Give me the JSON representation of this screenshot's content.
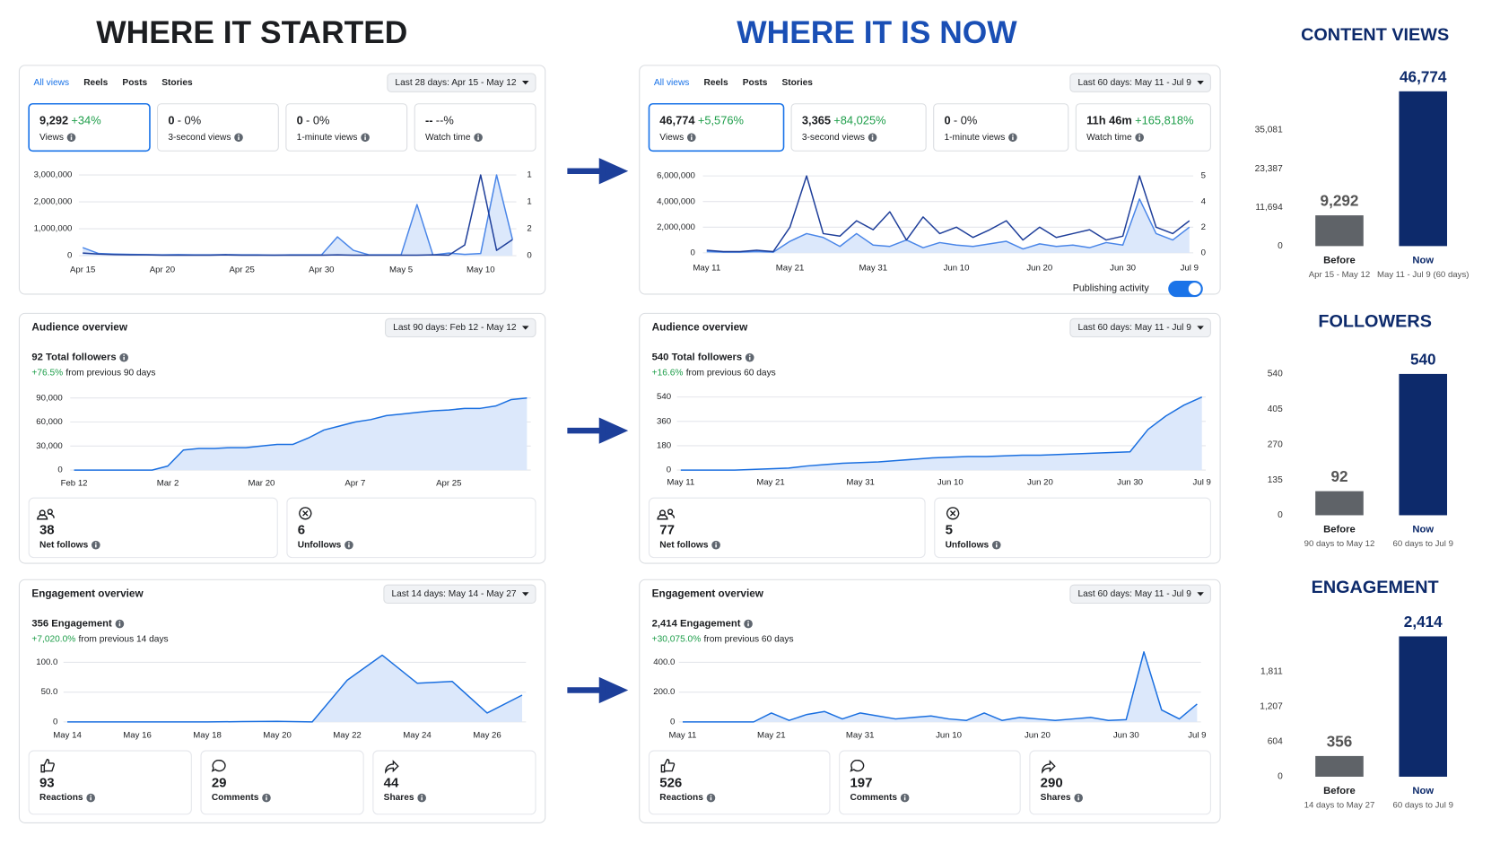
{
  "titles": {
    "before": "WHERE IT STARTED",
    "now": "WHERE IT IS NOW"
  },
  "dashboards": [
    {
      "views": {
        "tabs": [
          "All views",
          "Reels",
          "Posts",
          "Stories"
        ],
        "range": "Last 28 days: Apr 15 - May 12",
        "metrics": [
          {
            "value": "9,292",
            "change": "+34%",
            "change_color": "#1e9e4a",
            "label": "Views"
          },
          {
            "value": "0",
            "change": "- 0%",
            "change_color": "#1c1e21",
            "label": "3-second views"
          },
          {
            "value": "0",
            "change": "- 0%",
            "change_color": "#1c1e21",
            "label": "1-minute views"
          },
          {
            "value": "--",
            "change": "--%",
            "change_color": "#1c1e21",
            "label": "Watch time"
          }
        ],
        "chart": {
          "type": "line",
          "categories": [
            "Apr 15",
            null,
            null,
            null,
            null,
            "Apr 20",
            null,
            null,
            null,
            null,
            "Apr 25",
            null,
            null,
            null,
            null,
            "Apr 30",
            null,
            null,
            null,
            null,
            "May 5",
            null,
            null,
            null,
            null,
            "May 10",
            null,
            null
          ],
          "ylim": [
            0,
            3000000
          ],
          "yticks": [
            0,
            {
              "value": 1000000,
              "label": "1,000,000"
            },
            {
              "value": 2000000,
              "label": "2,000,000"
            },
            {
              "value": 3000000,
              "label": "3,000,000"
            }
          ],
          "right_axis_labels": [
            "0",
            "2",
            "1",
            "1"
          ],
          "series": [
            {
              "color": "#4a86e8",
              "area": "#dce8fb",
              "values": [
                300000,
                80000,
                60000,
                50000,
                40000,
                30000,
                40000,
                30000,
                30000,
                40000,
                30000,
                30000,
                20000,
                30000,
                30000,
                30000,
                700000,
                200000,
                30000,
                30000,
                30000,
                1900000,
                30000,
                100000,
                50000,
                80000,
                3000000,
                600000
              ]
            },
            {
              "color": "#1f3f9a",
              "values": [
                100000,
                60000,
                40000,
                30000,
                30000,
                20000,
                20000,
                20000,
                20000,
                30000,
                20000,
                20000,
                20000,
                20000,
                20000,
                20000,
                30000,
                20000,
                20000,
                20000,
                20000,
                20000,
                30000,
                20000,
                400000,
                3000000,
                200000,
                600000
              ]
            }
          ]
        }
      },
      "audience": {
        "title": "Audience overview",
        "range": "Last 90 days: Feb 12 - May 12",
        "total": "92 Total followers",
        "change": "+76.5%",
        "change_text": "from previous 90 days",
        "chart": {
          "type": "line",
          "categories": [
            "Feb 12",
            null,
            null,
            null,
            null,
            null,
            "Mar 2",
            null,
            null,
            null,
            null,
            null,
            "Mar 20",
            null,
            null,
            null,
            null,
            null,
            "Apr 7",
            null,
            null,
            null,
            null,
            null,
            "Apr 25",
            null,
            null,
            null,
            null,
            null
          ],
          "ylim": [
            0,
            90000
          ],
          "yticks": [
            0,
            {
              "value": 30000,
              "label": "30,000"
            },
            {
              "value": 60000,
              "label": "60,000"
            },
            {
              "value": 90000,
              "label": "90,000"
            }
          ],
          "series": [
            {
              "color": "#1a6fe0",
              "area": "#dce8fb",
              "values": [
                0,
                0,
                0,
                0,
                0,
                0,
                5000,
                25000,
                27000,
                27000,
                28000,
                28000,
                30000,
                32000,
                32000,
                40000,
                50000,
                55000,
                60000,
                63000,
                68000,
                70000,
                72000,
                74000,
                75000,
                77000,
                77000,
                80000,
                88000,
                90000
              ]
            }
          ]
        },
        "cards": [
          {
            "value": 38,
            "label": "Net follows"
          },
          {
            "value": 6,
            "label": "Unfollows"
          }
        ]
      },
      "engagement": {
        "title": "Engagement overview",
        "range": "Last 14 days: May 14 - May 27",
        "total": "356 Engagement",
        "change": "+7,020.0%",
        "change_text": "from previous 14 days",
        "chart": {
          "type": "line",
          "categories": [
            "May 14",
            null,
            "May 16",
            null,
            "May 18",
            null,
            "May 20",
            null,
            "May 22",
            null,
            "May 24",
            null,
            "May 26",
            null
          ],
          "ylim": [
            0,
            115
          ],
          "yticks": [
            0,
            {
              "value": 50,
              "label": "50.0"
            },
            {
              "value": 100,
              "label": "100.0"
            }
          ],
          "series": [
            {
              "color": "#1a6fe0",
              "area": "#dce8fb",
              "values": [
                0,
                0,
                0,
                0,
                0,
                0.5,
                1,
                0,
                70,
                112,
                65,
                68,
                15,
                45
              ]
            }
          ]
        },
        "cards": [
          {
            "value": 93,
            "label": "Reactions"
          },
          {
            "value": 29,
            "label": "Comments"
          },
          {
            "value": 44,
            "label": "Shares"
          }
        ]
      }
    },
    {
      "views": {
        "tabs": [
          "All views",
          "Reels",
          "Posts",
          "Stories"
        ],
        "range": "Last 60 days: May 11 - Jul 9",
        "metrics": [
          {
            "value": "46,774",
            "change": "+5,576%",
            "change_color": "#1e9e4a",
            "label": "Views"
          },
          {
            "value": "3,365",
            "change": "+84,025%",
            "change_color": "#1e9e4a",
            "label": "3-second views"
          },
          {
            "value": "0",
            "change": "- 0%",
            "change_color": "#1c1e21",
            "label": "1-minute views"
          },
          {
            "value": "11h 46m",
            "change": "+165,818%",
            "change_color": "#1e9e4a",
            "label": "Watch time"
          }
        ],
        "chart": {
          "type": "line",
          "categories": [
            "May 11",
            null,
            null,
            null,
            null,
            "May 21",
            null,
            null,
            null,
            null,
            "May 31",
            null,
            null,
            null,
            null,
            "Jun 10",
            null,
            null,
            null,
            null,
            "Jun 20",
            null,
            null,
            null,
            null,
            "Jun 30",
            null,
            null,
            null,
            "Jul 9"
          ],
          "ylim": [
            0,
            6000000
          ],
          "yticks": [
            0,
            {
              "value": 2000000,
              "label": "2,000,000"
            },
            {
              "value": 4000000,
              "label": "4,000,000"
            },
            {
              "value": 6000000,
              "label": "6,000,000"
            }
          ],
          "right_axis_labels": [
            "0",
            "2",
            "4",
            "5"
          ],
          "series": [
            {
              "color": "#4a86e8",
              "area": "#dce8fb",
              "values": [
                100000,
                50000,
                50000,
                100000,
                50000,
                900000,
                1500000,
                1200000,
                500000,
                1500000,
                600000,
                500000,
                1000000,
                400000,
                800000,
                600000,
                500000,
                700000,
                900000,
                300000,
                700000,
                500000,
                600000,
                400000,
                800000,
                600000,
                4200000,
                1500000,
                1000000,
                2000000
              ]
            },
            {
              "color": "#1f3f9a",
              "values": [
                200000,
                100000,
                100000,
                200000,
                100000,
                2000000,
                6000000,
                1500000,
                1300000,
                2500000,
                1800000,
                3200000,
                1000000,
                2800000,
                1500000,
                2000000,
                1200000,
                1800000,
                2500000,
                1000000,
                2000000,
                1200000,
                1500000,
                1800000,
                1000000,
                1300000,
                6000000,
                2000000,
                1500000,
                2500000
              ]
            }
          ]
        },
        "publishing": "Publishing activity",
        "toggle": true
      },
      "audience": {
        "title": "Audience overview",
        "range": "Last 60 days: May 11 - Jul 9",
        "total": "540 Total followers",
        "change": "+16.6%",
        "change_text": "from previous 60 days",
        "chart": {
          "type": "line",
          "categories": [
            "May 11",
            null,
            null,
            null,
            null,
            "May 21",
            null,
            null,
            null,
            null,
            "May 31",
            null,
            null,
            null,
            null,
            "Jun 10",
            null,
            null,
            null,
            null,
            "Jun 20",
            null,
            null,
            null,
            null,
            "Jun 30",
            null,
            null,
            null,
            "Jul 9"
          ],
          "ylim": [
            0,
            540
          ],
          "yticks": [
            0,
            180,
            360,
            540
          ],
          "series": [
            {
              "color": "#1a6fe0",
              "area": "#dce8fb",
              "values": [
                0,
                0,
                0,
                0,
                5,
                10,
                15,
                30,
                40,
                50,
                55,
                60,
                70,
                80,
                90,
                95,
                100,
                100,
                105,
                110,
                110,
                115,
                120,
                125,
                130,
                135,
                300,
                400,
                480,
                540
              ]
            }
          ]
        },
        "cards": [
          {
            "value": 77,
            "label": "Net follows"
          },
          {
            "value": 5,
            "label": "Unfollows"
          }
        ]
      },
      "engagement": {
        "title": "Engagement overview",
        "range": "Last 60 days: May 11 - Jul 9",
        "total": "2,414 Engagement",
        "change": "+30,075.0%",
        "change_text": "from previous 60 days",
        "chart": {
          "type": "line",
          "categories": [
            "May 11",
            null,
            null,
            null,
            null,
            "May 21",
            null,
            null,
            null,
            null,
            "May 31",
            null,
            null,
            null,
            null,
            "Jun 10",
            null,
            null,
            null,
            null,
            "Jun 20",
            null,
            null,
            null,
            null,
            "Jun 30",
            null,
            null,
            null,
            "Jul 9"
          ],
          "ylim": [
            0,
            480
          ],
          "yticks": [
            0,
            {
              "value": 200,
              "label": "200.0"
            },
            {
              "value": 400,
              "label": "400.0"
            }
          ],
          "series": [
            {
              "color": "#1a6fe0",
              "area": "#dce8fb",
              "values": [
                0,
                0,
                0,
                0,
                0,
                60,
                10,
                50,
                70,
                20,
                60,
                40,
                20,
                30,
                40,
                20,
                10,
                60,
                10,
                30,
                20,
                10,
                20,
                30,
                10,
                15,
                470,
                80,
                20,
                120
              ]
            }
          ]
        },
        "cards": [
          {
            "value": 526,
            "label": "Reactions"
          },
          {
            "value": 197,
            "label": "Comments"
          },
          {
            "value": 290,
            "label": "Shares"
          }
        ]
      }
    }
  ],
  "chart_data": [
    {
      "type": "bar",
      "title": "CONTENT VIEWS",
      "categories": [
        "Before",
        "Now"
      ],
      "sublabels": [
        "Apr 15 - May 12",
        "May 11 - Jul 9 (60 days)"
      ],
      "values": [
        9292,
        46774
      ],
      "value_labels": [
        "9,292",
        "46,774"
      ],
      "colors": [
        "#5f6368",
        "#0d2a6b"
      ],
      "ylim": [
        0,
        46774
      ],
      "yticks": [
        0,
        {
          "value": 11694,
          "label": "11,694"
        },
        {
          "value": 23387,
          "label": "23,387"
        },
        {
          "value": 35081,
          "label": "35,081"
        }
      ]
    },
    {
      "type": "bar",
      "title": "FOLLOWERS",
      "categories": [
        "Before",
        "Now"
      ],
      "sublabels": [
        "90 days to May 12",
        "60 days to Jul 9"
      ],
      "values": [
        92,
        540
      ],
      "colors": [
        "#5f6368",
        "#0d2a6b"
      ],
      "ylim": [
        0,
        540
      ],
      "yticks": [
        0,
        135,
        270,
        405,
        540
      ]
    },
    {
      "type": "bar",
      "title": "ENGAGEMENT",
      "categories": [
        "Before",
        "Now"
      ],
      "sublabels": [
        "14 days to May 27",
        "60 days to Jul 9"
      ],
      "values": [
        356,
        2414
      ],
      "value_labels": [
        "356",
        "2,414"
      ],
      "colors": [
        "#5f6368",
        "#0d2a6b"
      ],
      "ylim": [
        0,
        2414
      ],
      "yticks": [
        0,
        {
          "value": 604,
          "label": "604"
        },
        {
          "value": 1207,
          "label": "1,207"
        },
        {
          "value": 1811,
          "label": "1,811"
        }
      ]
    }
  ]
}
